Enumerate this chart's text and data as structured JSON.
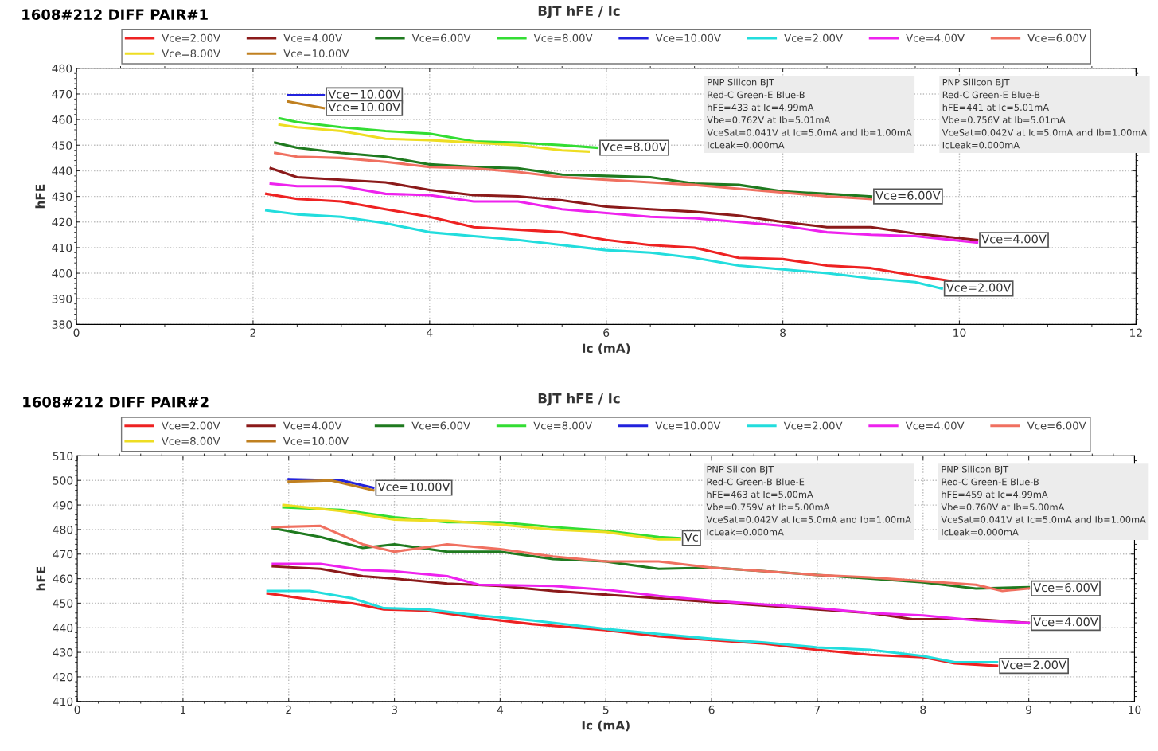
{
  "chart_data": [
    {
      "type": "line",
      "title": "1608#212 DIFF PAIR#1",
      "subtitle": "BJT hFE / Ic",
      "xlabel": "Ic (mA)",
      "ylabel": "hFE",
      "xlim": [
        0,
        12
      ],
      "xticks": [
        0,
        2,
        4,
        6,
        8,
        10,
        12
      ],
      "ylim": [
        380,
        480
      ],
      "yticks": [
        380,
        390,
        400,
        410,
        420,
        430,
        440,
        450,
        460,
        470,
        480
      ],
      "grid": true,
      "legend": "top",
      "marker": "none",
      "line_style": "solid",
      "series": [
        {
          "name": "Vce=2.00V",
          "color": "#ee2222",
          "x": [
            2.15,
            2.5,
            3,
            3.5,
            4,
            4.5,
            5,
            5.5,
            6,
            6.5,
            7,
            7.5,
            8,
            8.5,
            9,
            9.5,
            9.9
          ],
          "values": [
            431,
            429,
            428,
            425,
            422,
            418,
            417,
            416,
            413,
            411,
            410,
            406,
            405.5,
            403,
            402,
            399,
            397
          ]
        },
        {
          "name": "Vce=4.00V",
          "color": "#8b1a1a",
          "x": [
            2.2,
            2.5,
            3,
            3.5,
            4,
            4.5,
            5,
            5.5,
            6,
            6.5,
            7,
            7.5,
            8,
            8.5,
            9,
            9.5,
            10.2
          ],
          "values": [
            441,
            437.5,
            436.5,
            435.5,
            432.5,
            430.5,
            430,
            428.5,
            426,
            425,
            424,
            422.5,
            420,
            418,
            418,
            415.5,
            413
          ]
        },
        {
          "name": "Vce=6.00V",
          "color": "#1f7a1f",
          "x": [
            2.25,
            2.5,
            3,
            3.5,
            4,
            4.5,
            5,
            5.5,
            6,
            6.5,
            7,
            7.5,
            8,
            8.5,
            9
          ],
          "values": [
            451,
            449,
            447,
            445.5,
            442.5,
            441.5,
            441,
            438.5,
            438,
            437.5,
            435,
            434.5,
            432,
            431,
            430
          ]
        },
        {
          "name": "Vce=8.00V",
          "color": "#33dd33",
          "x": [
            2.3,
            2.5,
            3,
            3.5,
            4,
            4.5,
            5,
            5.5,
            5.9
          ],
          "values": [
            460.5,
            459,
            457,
            455.5,
            454.5,
            451.5,
            451,
            450,
            449
          ]
        },
        {
          "name": "Vce=10.00V",
          "color": "#2222dd",
          "x": [
            2.4,
            2.8
          ],
          "values": [
            469.5,
            469.5
          ]
        },
        {
          "name": "Vce=2.00V",
          "color": "#22dddd",
          "x": [
            2.15,
            2.5,
            3,
            3.5,
            4,
            4.5,
            5,
            5.5,
            6,
            6.5,
            7,
            7.5,
            8,
            8.5,
            9,
            9.5,
            9.8
          ],
          "values": [
            424.5,
            423,
            422,
            419.5,
            416,
            414.5,
            413,
            411,
            409,
            408,
            406,
            403,
            401.5,
            400,
            398,
            396.5,
            394
          ]
        },
        {
          "name": "Vce=4.00V",
          "color": "#ee22ee",
          "x": [
            2.2,
            2.5,
            3,
            3.5,
            4,
            4.5,
            5,
            5.5,
            6,
            6.5,
            7,
            7.5,
            8,
            8.5,
            9,
            9.5,
            10.2
          ],
          "values": [
            435,
            434,
            434,
            431,
            430.5,
            428,
            428,
            425,
            423.5,
            422,
            421.5,
            420,
            418.5,
            416,
            415,
            414.5,
            412
          ]
        },
        {
          "name": "Vce=6.00V",
          "color": "#f07060",
          "x": [
            2.25,
            2.5,
            3,
            3.5,
            4,
            4.5,
            5,
            5.5,
            6,
            6.5,
            7,
            7.5,
            8,
            8.5,
            9
          ],
          "values": [
            447,
            445.5,
            445,
            443.5,
            441.5,
            441,
            439.5,
            437.5,
            436.5,
            435.5,
            434.5,
            433,
            431.5,
            430,
            429
          ]
        },
        {
          "name": "Vce=8.00V",
          "color": "#eedd22",
          "x": [
            2.3,
            2.5,
            3,
            3.5,
            4,
            4.5,
            5,
            5.5,
            5.8
          ],
          "values": [
            458,
            457,
            455.5,
            452.5,
            452,
            451,
            450,
            448,
            447.5
          ]
        },
        {
          "name": "Vce=10.00V",
          "color": "#c08020",
          "x": [
            2.4,
            2.8
          ],
          "values": [
            467,
            464.5
          ]
        }
      ],
      "annotations": [
        {
          "text": "Vce=10.00V",
          "x": 2.8,
          "y": 469.5
        },
        {
          "text": "Vce=10.00V",
          "x": 2.8,
          "y": 464.5
        },
        {
          "text": "Vce=8.00V",
          "x": 5.9,
          "y": 449
        },
        {
          "text": "Vce=6.00V",
          "x": 9,
          "y": 430
        },
        {
          "text": "Vce=4.00V",
          "x": 10.2,
          "y": 413
        },
        {
          "text": "Vce=2.00V",
          "x": 9.8,
          "y": 394
        },
        "PNP Silicon BJT\nRed-C Green-E Blue-B\nhFE=433 at Ic=4.99mA\nVbe=0.762V at Ib=5.01mA\nVceSat=0.041V at Ic=5.0mA and Ib=1.00mA\nIcLeak=0.000mA",
        "PNP Silicon BJT\nRed-C Green-E Blue-B\nhFE=441 at Ic=5.01mA\nVbe=0.756V at Ib=5.01mA\nVceSat=0.042V at Ic=5.0mA and Ib=1.00mA\nIcLeak=0.000mA"
      ]
    },
    {
      "type": "line",
      "title": "1608#212 DIFF PAIR#2",
      "subtitle": "BJT hFE / Ic",
      "xlabel": "Ic (mA)",
      "ylabel": "hFE",
      "xlim": [
        0,
        10
      ],
      "xticks": [
        0,
        1,
        2,
        3,
        4,
        5,
        6,
        7,
        8,
        9,
        10
      ],
      "ylim": [
        410,
        510
      ],
      "yticks": [
        410,
        420,
        430,
        440,
        450,
        460,
        470,
        480,
        490,
        500,
        510
      ],
      "grid": true,
      "legend": "top",
      "marker": "none",
      "line_style": "solid",
      "series": [
        {
          "name": "Vce=2.00V",
          "color": "#ee2222",
          "x": [
            1.8,
            2.2,
            2.6,
            2.9,
            3.3,
            3.8,
            4.3,
            5,
            5.5,
            6,
            6.5,
            7,
            7.5,
            8,
            8.3,
            8.7
          ],
          "values": [
            454,
            451.5,
            450,
            447.5,
            447,
            444,
            441.5,
            439,
            436.5,
            435,
            433.5,
            431,
            429,
            428,
            425.5,
            424.5
          ]
        },
        {
          "name": "Vce=4.00V",
          "color": "#8b1a1a",
          "x": [
            1.85,
            2.3,
            2.7,
            3,
            3.5,
            4,
            4.5,
            5,
            5.5,
            6,
            6.5,
            7,
            7.5,
            7.9,
            8.5,
            9
          ],
          "values": [
            465,
            464,
            461,
            460,
            458,
            457,
            455,
            453.5,
            452,
            450.5,
            449,
            447.5,
            446,
            443.5,
            443.5,
            442
          ]
        },
        {
          "name": "Vce=6.00V",
          "color": "#1f7a1f",
          "x": [
            1.85,
            2.3,
            2.7,
            3,
            3.5,
            4,
            4.5,
            5,
            5.5,
            6,
            6.5,
            7,
            7.5,
            8,
            8.5,
            9
          ],
          "values": [
            480.5,
            477,
            472.5,
            474,
            471,
            471,
            468,
            467,
            464,
            464.5,
            463,
            461.5,
            460,
            458.5,
            456,
            456.5
          ]
        },
        {
          "name": "Vce=8.00V",
          "color": "#33dd33",
          "x": [
            1.95,
            2.5,
            3,
            3.5,
            4,
            4.5,
            5,
            5.5,
            5.7
          ],
          "values": [
            489,
            488,
            485,
            483,
            483,
            481,
            479.5,
            477,
            476.5
          ]
        },
        {
          "name": "Vce=10.00V",
          "color": "#2222dd",
          "x": [
            2,
            2.5,
            2.8
          ],
          "values": [
            500.5,
            500,
            497
          ]
        },
        {
          "name": "Vce=2.00V",
          "color": "#22dddd",
          "x": [
            1.8,
            2.2,
            2.6,
            2.9,
            3.3,
            3.8,
            4.3,
            5,
            5.5,
            6,
            6.5,
            7,
            7.5,
            8,
            8.3,
            8.7
          ],
          "values": [
            455,
            455,
            452,
            448,
            447.5,
            445,
            443,
            439.5,
            437.5,
            435.5,
            434,
            432,
            431,
            428.5,
            426,
            426
          ]
        },
        {
          "name": "Vce=4.00V",
          "color": "#ee22ee",
          "x": [
            1.85,
            2.3,
            2.7,
            3,
            3.5,
            3.8,
            4.5,
            5,
            5.5,
            6,
            6.5,
            7,
            7.5,
            8,
            8.5,
            9
          ],
          "values": [
            466,
            466,
            463.5,
            463,
            461,
            457.5,
            457,
            455.5,
            453,
            451,
            449.5,
            448,
            446,
            445,
            443,
            442
          ]
        },
        {
          "name": "Vce=6.00V",
          "color": "#f07060",
          "x": [
            1.85,
            2.3,
            2.7,
            3,
            3.5,
            4,
            4.5,
            5,
            5.5,
            6,
            6.5,
            7,
            7.5,
            8,
            8.5,
            8.75,
            9
          ],
          "values": [
            481,
            481.5,
            474,
            471,
            474,
            472,
            469,
            467,
            467,
            464.5,
            463,
            461.5,
            460.5,
            459,
            457.5,
            455,
            456
          ]
        },
        {
          "name": "Vce=8.00V",
          "color": "#eedd22",
          "x": [
            1.95,
            2.5,
            3,
            3.5,
            4,
            4.5,
            5,
            5.5,
            5.7
          ],
          "values": [
            490,
            487.5,
            484,
            483.5,
            482,
            480,
            479,
            476,
            476
          ]
        },
        {
          "name": "Vce=10.00V",
          "color": "#c08020",
          "x": [
            2,
            2.4,
            2.8
          ],
          "values": [
            499.5,
            500,
            496
          ]
        }
      ],
      "annotations": [
        {
          "text": "Vce=10.00V",
          "x": 2.8,
          "y": 497
        },
        {
          "text": "Vc",
          "x": 5.7,
          "y": 476.5
        },
        {
          "text": "Vce=6.00V",
          "x": 9,
          "y": 456
        },
        {
          "text": "Vce=4.00V",
          "x": 9,
          "y": 442
        },
        {
          "text": "Vce=2.00V",
          "x": 8.7,
          "y": 424.5
        },
        "PNP Silicon BJT\nRed-C Green-B Blue-E\nhFE=463 at Ic=5.00mA\nVbe=0.759V at Ib=5.00mA\nVceSat=0.042V at Ic=5.0mA and Ib=1.00mA\nIcLeak=0.000mA",
        "PNP Silicon BJT\nRed-C Green-E Blue-B\nhFE=459 at Ic=4.99mA\nVbe=0.760V at Ib=5.00mA\nVceSat=0.041V at Ic=5.0mA and Ib=1.00mA\nIcLeak=0.000mA"
      ]
    }
  ]
}
